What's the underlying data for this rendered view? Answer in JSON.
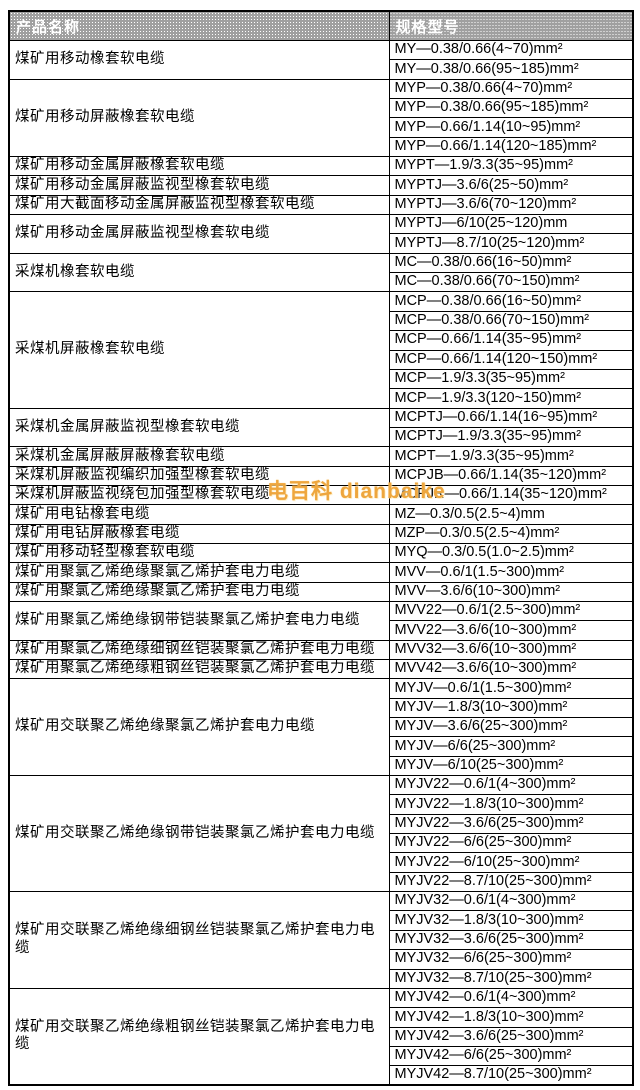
{
  "watermark": {
    "text": "电百科 dianbaike",
    "color": "#eea63e"
  },
  "table": {
    "headers": [
      {
        "label": "产品名称"
      },
      {
        "label": "规格型号"
      }
    ],
    "header_bg": "#a0a0a0",
    "header_text_color": "#ffffff",
    "groups": [
      {
        "name": "煤矿用移动橡套软电缆",
        "specs": [
          "MY—0.38/0.66(4~70)mm²",
          "MY—0.38/0.66(95~185)mm²"
        ]
      },
      {
        "name": "煤矿用移动屏蔽橡套软电缆",
        "specs": [
          "MYP—0.38/0.66(4~70)mm²",
          "MYP—0.38/0.66(95~185)mm²",
          "MYP—0.66/1.14(10~95)mm²",
          "MYP—0.66/1.14(120~185)mm²"
        ]
      },
      {
        "name": "煤矿用移动金属屏蔽橡套软电缆",
        "specs": [
          "MYPT—1.9/3.3(35~95)mm²"
        ]
      },
      {
        "name": "煤矿用移动金属屏蔽监视型橡套软电缆",
        "specs": [
          "MYPTJ—3.6/6(25~50)mm²"
        ]
      },
      {
        "name": "煤矿用大截面移动金属屏蔽监视型橡套软电缆",
        "specs": [
          "MYPTJ—3.6/6(70~120)mm²"
        ]
      },
      {
        "name": "煤矿用移动金属屏蔽监视型橡套软电缆",
        "specs": [
          "MYPTJ—6/10(25~120)mm",
          "MYPTJ—8.7/10(25~120)mm²"
        ]
      },
      {
        "name": "采煤机橡套软电缆",
        "specs": [
          "MC—0.38/0.66(16~50)mm²",
          "MC—0.38/0.66(70~150)mm²"
        ]
      },
      {
        "name": "采煤机屏蔽橡套软电缆",
        "specs": [
          "MCP—0.38/0.66(16~50)mm²",
          "MCP—0.38/0.66(70~150)mm²",
          "MCP—0.66/1.14(35~95)mm²",
          "MCP—0.66/1.14(120~150)mm²",
          "MCP—1.9/3.3(35~95)mm²",
          "MCP—1.9/3.3(120~150)mm²"
        ]
      },
      {
        "name": "采煤机金属屏蔽监视型橡套软电缆",
        "specs": [
          "MCPTJ—0.66/1.14(16~95)mm²",
          "MCPTJ—1.9/3.3(35~95)mm²"
        ]
      },
      {
        "name": "采煤机金属屏蔽屏蔽橡套软电缆",
        "specs": [
          "MCPT—1.9/3.3(35~95)mm²"
        ]
      },
      {
        "name": "采煤机屏蔽监视编织加强型橡套软电缆",
        "specs": [
          "MCPJB—0.66/1.14(35~120)mm²"
        ]
      },
      {
        "name": "采煤机屏蔽监视绕包加强型橡套软电缆",
        "specs": [
          "MCPJR—0.66/1.14(35~120)mm²"
        ]
      },
      {
        "name": "煤矿用电钻橡套电缆",
        "specs": [
          "MZ—0.3/0.5(2.5~4)mm"
        ]
      },
      {
        "name": "煤矿用电钻屏蔽橡套电缆",
        "specs": [
          "MZP—0.3/0.5(2.5~4)mm²"
        ]
      },
      {
        "name": "煤矿用移动轻型橡套软电缆",
        "specs": [
          "MYQ—0.3/0.5(1.0~2.5)mm²"
        ]
      },
      {
        "name": "煤矿用聚氯乙烯绝缘聚氯乙烯护套电力电缆",
        "specs": [
          "MVV—0.6/1(1.5~300)mm²"
        ]
      },
      {
        "name": "煤矿用聚氯乙烯绝缘聚氯乙烯护套电力电缆",
        "specs": [
          "MVV—3.6/6(10~300)mm²"
        ]
      },
      {
        "name": "煤矿用聚氯乙烯绝缘钢带铠装聚氯乙烯护套电力电缆",
        "specs": [
          "MVV22—0.6/1(2.5~300)mm²",
          "MVV22—3.6/6(10~300)mm²"
        ]
      },
      {
        "name": "煤矿用聚氯乙烯绝缘细钢丝铠装聚氯乙烯护套电力电缆",
        "specs": [
          "MVV32—3.6/6(10~300)mm²"
        ]
      },
      {
        "name": "煤矿用聚氯乙烯绝缘粗钢丝铠装聚氯乙烯护套电力电缆",
        "specs": [
          "MVV42—3.6/6(10~300)mm²"
        ]
      },
      {
        "name": "煤矿用交联聚乙烯绝缘聚氯乙烯护套电力电缆",
        "specs": [
          "MYJV—0.6/1(1.5~300)mm²",
          "MYJV—1.8/3(10~300)mm²",
          "MYJV—3.6/6(25~300)mm²",
          "MYJV—6/6(25~300)mm²",
          "MYJV—6/10(25~300)mm²"
        ]
      },
      {
        "name": "煤矿用交联聚乙烯绝缘钢带铠装聚氯乙烯护套电力电缆",
        "specs": [
          "MYJV22—0.6/1(4~300)mm²",
          "MYJV22—1.8/3(10~300)mm²",
          "MYJV22—3.6/6(25~300)mm²",
          "MYJV22—6/6(25~300)mm²",
          "MYJV22—6/10(25~300)mm²",
          "MYJV22—8.7/10(25~300)mm²"
        ]
      },
      {
        "name": "煤矿用交联聚乙烯绝缘细钢丝铠装聚氯乙烯护套电力电缆",
        "specs": [
          "MYJV32—0.6/1(4~300)mm²",
          "MYJV32—1.8/3(10~300)mm²",
          "MYJV32—3.6/6(25~300)mm²",
          "MYJV32—6/6(25~300)mm²",
          "MYJV32—8.7/10(25~300)mm²"
        ]
      },
      {
        "name": "煤矿用交联聚乙烯绝缘粗钢丝铠装聚氯乙烯护套电力电缆",
        "specs": [
          "MYJV42—0.6/1(4~300)mm²",
          "MYJV42—1.8/3(10~300)mm²",
          "MYJV42—3.6/6(25~300)mm²",
          "MYJV42—6/6(25~300)mm²",
          "MYJV42—8.7/10(25~300)mm²"
        ]
      }
    ]
  }
}
